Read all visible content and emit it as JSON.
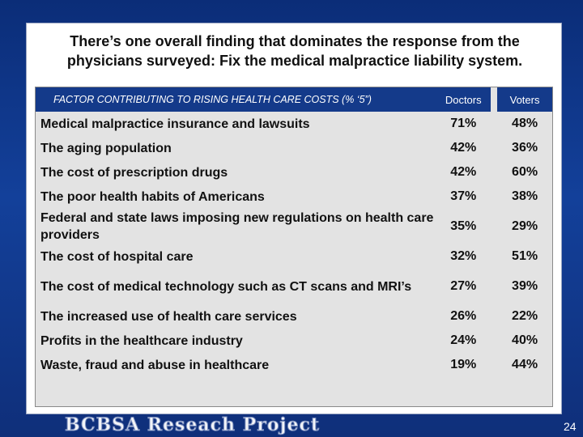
{
  "slide": {
    "title_line1": "There’s one overall finding that dominates the response from the",
    "title_line2": "physicians surveyed: Fix the medical malpractice liability system.",
    "page_number": "24",
    "footer_brand": "BCBSA Reseach Project"
  },
  "table": {
    "header": {
      "factor": "FACTOR CONTRIBUTING TO RISING HEALTH CARE COSTS (% ‘5”)",
      "doctors": "Doctors",
      "voters": "Voters"
    },
    "rows": [
      {
        "label": "Medical malpractice insurance and lawsuits",
        "doctors": "71%",
        "voters": "48%"
      },
      {
        "label": "The aging population",
        "doctors": "42%",
        "voters": "36%"
      },
      {
        "label": "The cost of prescription drugs",
        "doctors": "42%",
        "voters": "60%"
      },
      {
        "label": "The poor health habits of Americans",
        "doctors": "37%",
        "voters": "38%"
      },
      {
        "label": "Federal and state laws imposing new regulations on health care providers",
        "doctors": "35%",
        "voters": "29%"
      },
      {
        "label": "The cost of hospital care",
        "doctors": "32%",
        "voters": "51%"
      },
      {
        "label": "The cost of medical technology such as CT scans and MRI’s",
        "doctors": "27%",
        "voters": "39%"
      },
      {
        "label": "The increased use of health care services",
        "doctors": "26%",
        "voters": "22%"
      },
      {
        "label": "Profits in the healthcare industry",
        "doctors": "24%",
        "voters": "40%"
      },
      {
        "label": "Waste, fraud and abuse in healthcare",
        "doctors": "19%",
        "voters": "44%"
      }
    ]
  }
}
